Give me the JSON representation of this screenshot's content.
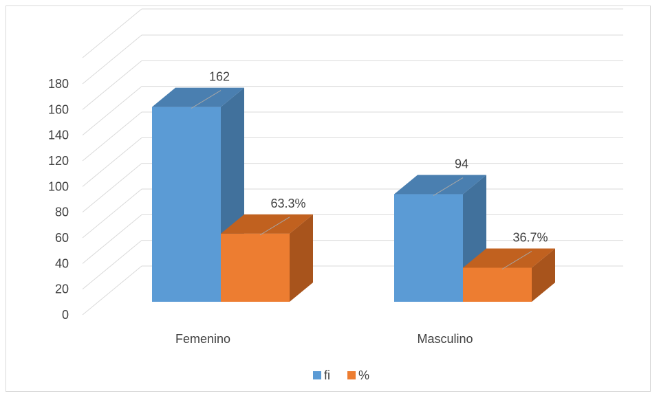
{
  "chart_data": {
    "type": "bar",
    "title": "",
    "xlabel": "",
    "ylabel": "",
    "categories": [
      "Femenino",
      "Masculino"
    ],
    "series": [
      {
        "name": "fi",
        "values": [
          162,
          94
        ],
        "labels": [
          "162",
          "94"
        ],
        "color": "#5B9BD5",
        "side_color": "#41719C",
        "top_color": "#4A7FB0"
      },
      {
        "name": "%",
        "values": [
          63.3,
          36.7
        ],
        "labels": [
          "63.3%",
          "36.7%"
        ],
        "color": "#ED7D31",
        "side_color": "#A8541C",
        "top_color": "#C1611F"
      }
    ],
    "ylim": [
      0,
      180
    ],
    "yticks": [
      "0",
      "20",
      "40",
      "60",
      "80",
      "100",
      "120",
      "140",
      "160",
      "180"
    ],
    "ytick_values": [
      0,
      20,
      40,
      60,
      80,
      100,
      120,
      140,
      160,
      180
    ],
    "grid": true,
    "legend": "bottom",
    "colors": {
      "gridline": "#D9D9D9",
      "text": "#404040"
    }
  }
}
